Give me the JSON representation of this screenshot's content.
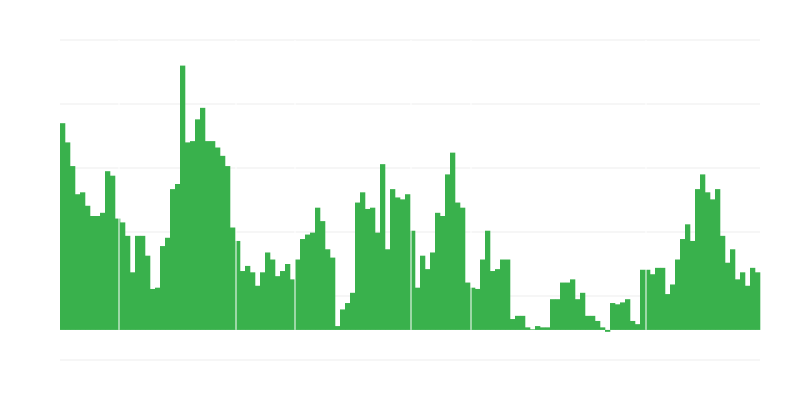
{
  "chart_data": {
    "type": "bar",
    "title": "",
    "xlabel": "",
    "ylabel": "",
    "ylim": [
      -0.47,
      4.53
    ],
    "grid": true,
    "legend": "none",
    "bar_color": "#39b14c",
    "grid_color": "#eeeeee",
    "values": [
      3.23,
      2.93,
      2.56,
      2.12,
      2.15,
      1.94,
      1.78,
      1.78,
      1.83,
      2.48,
      2.41,
      1.74,
      1.68,
      1.47,
      0.9,
      1.47,
      1.47,
      1.16,
      0.64,
      0.66,
      1.31,
      1.44,
      2.2,
      2.28,
      4.13,
      2.93,
      2.95,
      3.29,
      3.47,
      2.95,
      2.95,
      2.85,
      2.72,
      2.56,
      1.6,
      1.39,
      0.92,
      1.0,
      0.9,
      0.69,
      0.9,
      1.21,
      1.1,
      0.84,
      0.92,
      1.03,
      0.79,
      1.1,
      1.42,
      1.49,
      1.52,
      1.91,
      1.7,
      1.26,
      1.13,
      0.06,
      0.32,
      0.42,
      0.58,
      1.99,
      2.15,
      1.89,
      1.91,
      1.52,
      2.59,
      1.26,
      2.2,
      2.07,
      2.04,
      2.12,
      1.55,
      0.66,
      1.16,
      0.95,
      1.21,
      1.83,
      1.78,
      2.43,
      2.77,
      1.99,
      1.91,
      0.74,
      0.66,
      0.64,
      1.1,
      1.55,
      0.92,
      0.95,
      1.1,
      1.1,
      0.17,
      0.22,
      0.22,
      0.04,
      0.01,
      0.06,
      0.04,
      0.04,
      0.48,
      0.48,
      0.74,
      0.74,
      0.79,
      0.48,
      0.58,
      0.22,
      0.22,
      0.14,
      0.04,
      -0.03,
      0.42,
      0.4,
      0.43,
      0.48,
      0.14,
      0.09,
      0.94,
      0.94,
      0.87,
      0.97,
      0.97,
      0.56,
      0.71,
      1.1,
      1.42,
      1.65,
      1.39,
      2.2,
      2.43,
      2.15,
      2.04,
      2.2,
      1.47,
      1.05,
      1.26,
      0.79,
      0.9,
      0.69,
      0.97,
      0.9
    ]
  }
}
